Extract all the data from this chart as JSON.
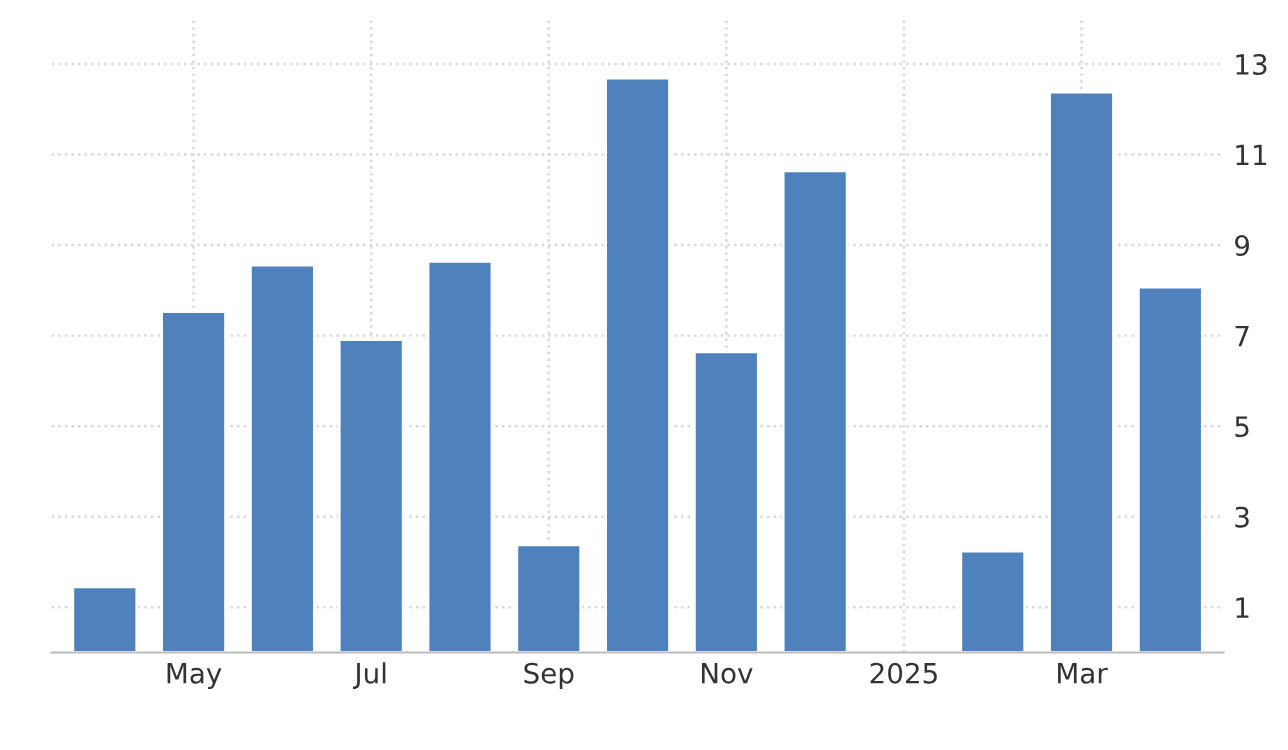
{
  "chart_data": {
    "type": "bar",
    "categories": [
      null,
      "May",
      null,
      "Jul",
      null,
      "Sep",
      null,
      "Nov",
      null,
      "2025",
      null,
      "Mar",
      null
    ],
    "values": [
      1.45,
      7.53,
      8.56,
      6.91,
      8.64,
      2.38,
      12.69,
      6.64,
      10.64,
      null,
      2.24,
      12.38,
      8.07
    ],
    "color": "#4f81bd",
    "ylim": [
      0,
      14
    ],
    "yticks": [
      1,
      3,
      5,
      7,
      9,
      11,
      13
    ],
    "grid": true
  }
}
